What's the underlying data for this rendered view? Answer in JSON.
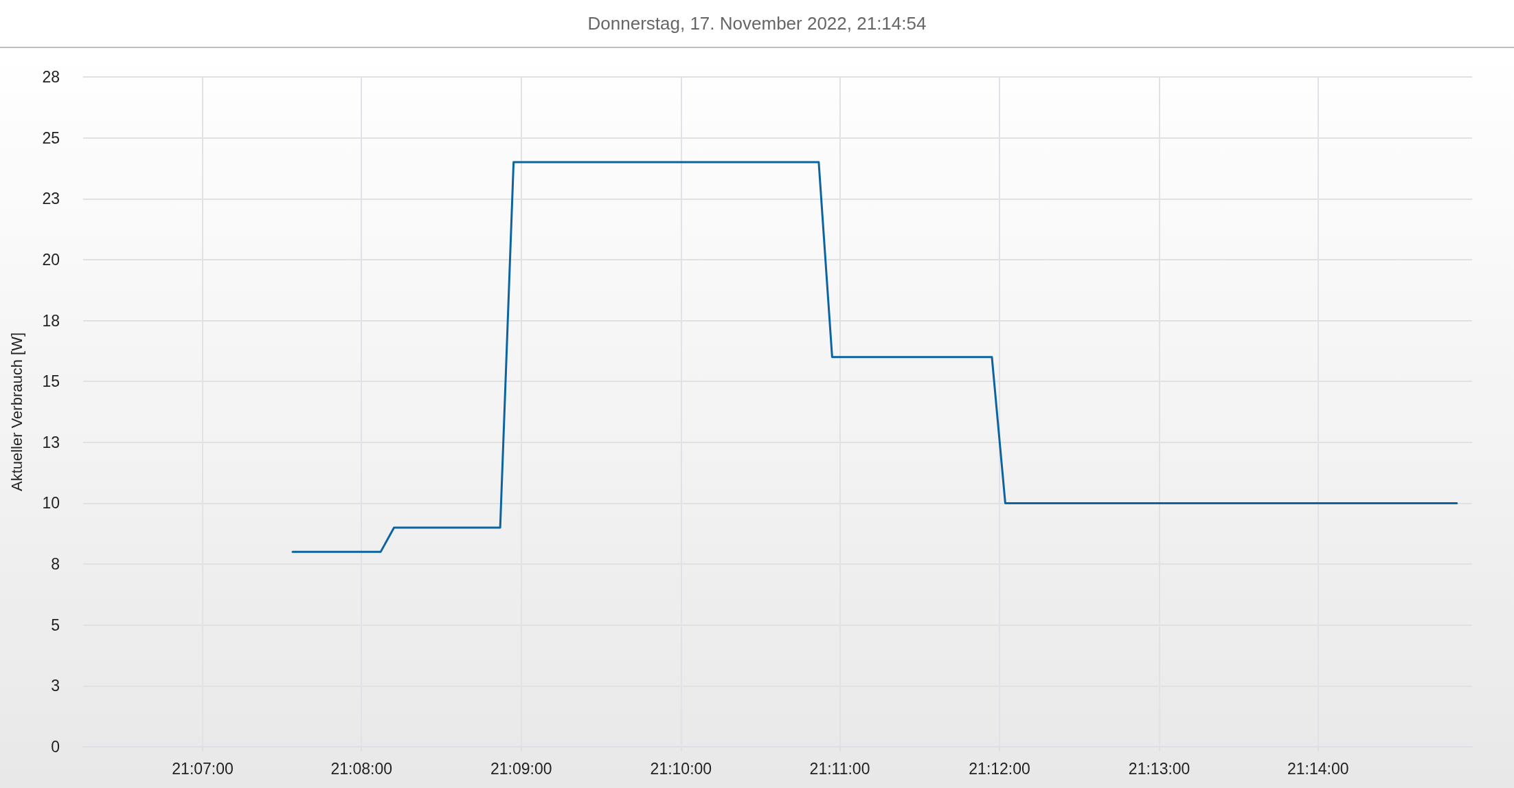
{
  "chart_data": {
    "type": "line",
    "title": "Donnerstag, 17. November 2022, 21:14:54",
    "ylabel": "Aktueller Verbrauch [W]",
    "x": [
      21.1261,
      21.1353,
      21.1367,
      21.1478,
      21.1492,
      21.1811,
      21.1825,
      21.1992,
      21.2006,
      21.2478
    ],
    "values": [
      8,
      8,
      9,
      9,
      24,
      24,
      16,
      16,
      10,
      10
    ],
    "color": "#0b64a0",
    "xlim": [
      21.1042,
      21.2494
    ],
    "xticks": [
      {
        "value": 21.1167,
        "label": "21:07:00"
      },
      {
        "value": 21.1333,
        "label": "21:08:00"
      },
      {
        "value": 21.15,
        "label": "21:09:00"
      },
      {
        "value": 21.1667,
        "label": "21:10:00"
      },
      {
        "value": 21.1833,
        "label": "21:11:00"
      },
      {
        "value": 21.2,
        "label": "21:12:00"
      },
      {
        "value": 21.2167,
        "label": "21:13:00"
      },
      {
        "value": 21.2333,
        "label": "21:14:00"
      }
    ],
    "ylim": [
      0,
      27.5
    ],
    "yticks": [
      0,
      {
        "value": 2.5,
        "label": "3"
      },
      5,
      {
        "value": 7.5,
        "label": "8"
      },
      10,
      {
        "value": 12.5,
        "label": "13"
      },
      15,
      {
        "value": 17.5,
        "label": "18"
      },
      20,
      {
        "value": 22.5,
        "label": "23"
      },
      25,
      {
        "value": 27.5,
        "label": "28"
      }
    ],
    "grid": true,
    "marker": "none"
  }
}
